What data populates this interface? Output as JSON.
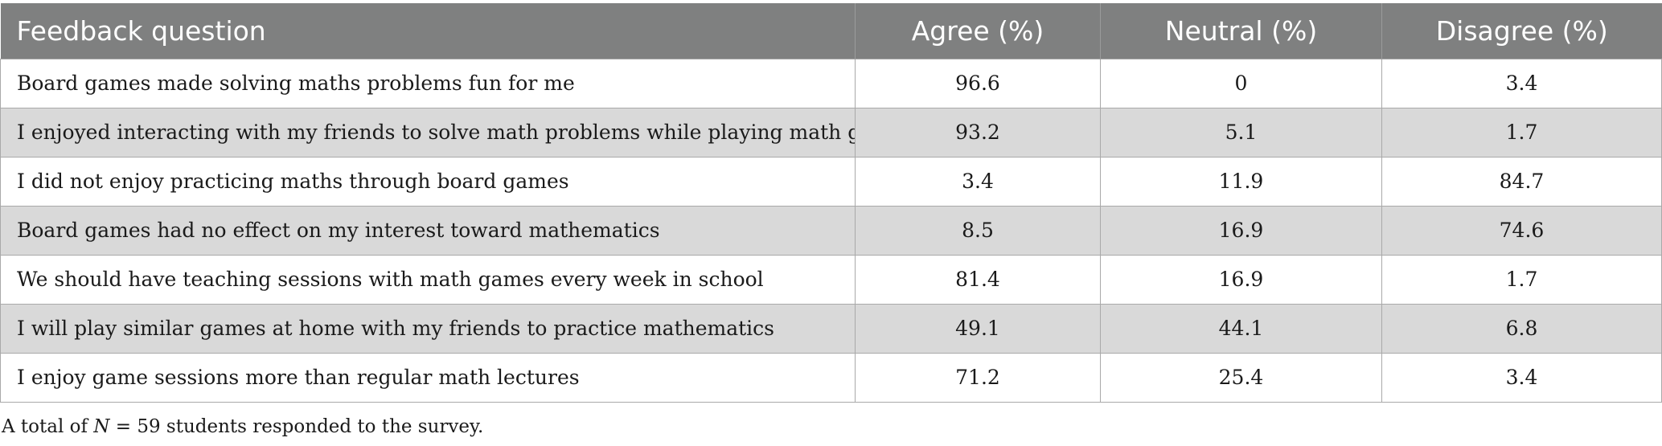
{
  "table": {
    "headers": [
      "Feedback question",
      "Agree (%)",
      "Neutral (%)",
      "Disagree (%)"
    ],
    "rows": [
      {
        "question": "Board games made solving maths problems fun for me",
        "agree": "96.6",
        "neutral": "0",
        "disagree": "3.4"
      },
      {
        "question": "I enjoyed interacting with my friends to solve math problems while playing math games",
        "agree": "93.2",
        "neutral": "5.1",
        "disagree": "1.7"
      },
      {
        "question": "I did not enjoy practicing maths through board games",
        "agree": "3.4",
        "neutral": "11.9",
        "disagree": "84.7"
      },
      {
        "question": "Board games had no effect on my interest toward mathematics",
        "agree": "8.5",
        "neutral": "16.9",
        "disagree": "74.6"
      },
      {
        "question": "We should have teaching sessions with math games every week in school",
        "agree": "81.4",
        "neutral": "16.9",
        "disagree": "1.7"
      },
      {
        "question": "I will play similar games at home with my friends to practice mathematics",
        "agree": "49.1",
        "neutral": "44.1",
        "disagree": "6.8"
      },
      {
        "question": "I enjoy game sessions more than regular math lectures",
        "agree": "71.2",
        "neutral": "25.4",
        "disagree": "3.4"
      }
    ]
  },
  "footnote": {
    "prefix": "A total of ",
    "variable": "N",
    "suffix": " = 59 students responded to the survey."
  }
}
